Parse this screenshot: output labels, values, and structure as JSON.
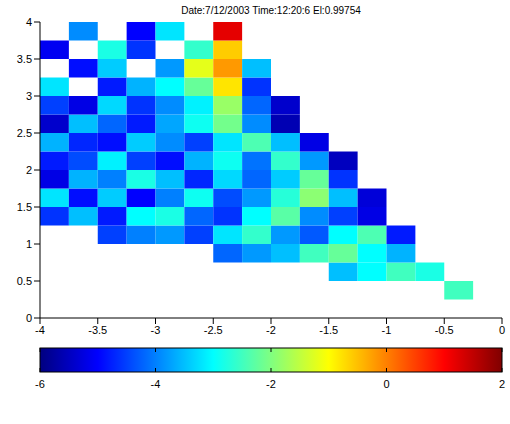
{
  "chart_data": {
    "type": "heatmap",
    "title": "Date:7/12/2003 Time:12:20:6 El:0.99754",
    "xlim": [
      -4,
      0
    ],
    "xticks": [
      -4,
      -3.5,
      -3,
      -2.5,
      -2,
      -1.5,
      -1,
      -0.5,
      0
    ],
    "ylim": [
      0,
      4
    ],
    "yticks": [
      0,
      0.5,
      1,
      1.5,
      2,
      2.5,
      3,
      3.5,
      4
    ],
    "x_edges": [
      -4,
      -3.75,
      -3.5,
      -3.25,
      -3,
      -2.75,
      -2.5,
      -2.25,
      -2,
      -1.75,
      -1.5,
      -1.25,
      -1,
      -0.75,
      -0.5,
      -0.25,
      0
    ],
    "y_edges": [
      0,
      0.25,
      0.5,
      0.75,
      1,
      1.25,
      1.5,
      1.75,
      2,
      2.25,
      2.5,
      2.75,
      3,
      3.25,
      3.5,
      3.75,
      4
    ],
    "values": [
      [
        null,
        null,
        null,
        null,
        null,
        null,
        null,
        null,
        null,
        null,
        null,
        null,
        null,
        null,
        null,
        null
      ],
      [
        null,
        null,
        null,
        null,
        null,
        null,
        null,
        null,
        null,
        null,
        null,
        null,
        null,
        null,
        -2.5,
        null
      ],
      [
        null,
        null,
        null,
        null,
        null,
        null,
        null,
        null,
        null,
        null,
        -3.5,
        -3,
        -2.5,
        -2.8,
        null,
        null
      ],
      [
        null,
        null,
        null,
        null,
        null,
        null,
        -4.2,
        -3.8,
        -3.5,
        -2.5,
        -2.2,
        -3,
        -3.6,
        null,
        null,
        null
      ],
      [
        null,
        null,
        -4.5,
        -4,
        -3.8,
        -4.5,
        -3.2,
        -2.6,
        -3.8,
        -4.3,
        -3,
        -2.4,
        -4.8,
        null,
        null,
        null
      ],
      [
        -4.6,
        -3.5,
        -4.8,
        -3,
        -2.8,
        -4.2,
        -4.6,
        -3,
        -2.3,
        -3.9,
        -4.5,
        -5.2,
        null,
        null,
        null,
        null
      ],
      [
        -3.2,
        -4.9,
        -3.4,
        -5,
        -4,
        -2.9,
        -4.4,
        -3.8,
        -2.7,
        -1.9,
        -3.5,
        -5.3,
        null,
        null,
        null,
        null
      ],
      [
        -5.2,
        -3.6,
        -4,
        -2.8,
        -3.5,
        -4.7,
        -3.3,
        -4.2,
        -3.4,
        -2.2,
        -4.6,
        null,
        null,
        null,
        null,
        null
      ],
      [
        -4.8,
        -4.4,
        -3.1,
        -4.5,
        -4.9,
        -3.6,
        -2.9,
        -4.1,
        -2.6,
        -3.8,
        -5.5,
        null,
        null,
        null,
        null,
        null
      ],
      [
        -3.6,
        -4.7,
        -4.9,
        -3.4,
        -3.9,
        -4.5,
        -3.2,
        -2.4,
        -3.5,
        -5.2,
        null,
        null,
        null,
        null,
        null,
        null
      ],
      [
        -5.4,
        -3.5,
        -4.2,
        -4.8,
        -3.7,
        -2.9,
        -2.1,
        -3.9,
        -5.6,
        null,
        null,
        null,
        null,
        null,
        null,
        null
      ],
      [
        -4.5,
        -5.2,
        -3.3,
        -4.6,
        -3.9,
        -3.1,
        -1.8,
        -4.2,
        -5.4,
        null,
        null,
        null,
        null,
        null,
        null,
        null
      ],
      [
        -3.2,
        null,
        -4.8,
        -3.6,
        -3,
        -2.2,
        -0.8,
        -4.6,
        null,
        null,
        null,
        null,
        null,
        null,
        null,
        null
      ],
      [
        null,
        -4.9,
        -3.4,
        null,
        -3.8,
        -1.2,
        -0.2,
        -3.5,
        null,
        null,
        null,
        null,
        null,
        null,
        null,
        null
      ],
      [
        -5.1,
        null,
        -2.8,
        -4.6,
        null,
        -2.6,
        -0.6,
        null,
        null,
        null,
        null,
        null,
        null,
        null,
        null,
        null
      ],
      [
        null,
        -3.9,
        null,
        -5,
        -3.2,
        null,
        1.2,
        null,
        null,
        null,
        null,
        null,
        null,
        null,
        null,
        null
      ]
    ],
    "colorbar_range": [
      -6,
      2
    ],
    "colorbar_ticks": [
      -6,
      -4,
      -2,
      0,
      2
    ]
  }
}
